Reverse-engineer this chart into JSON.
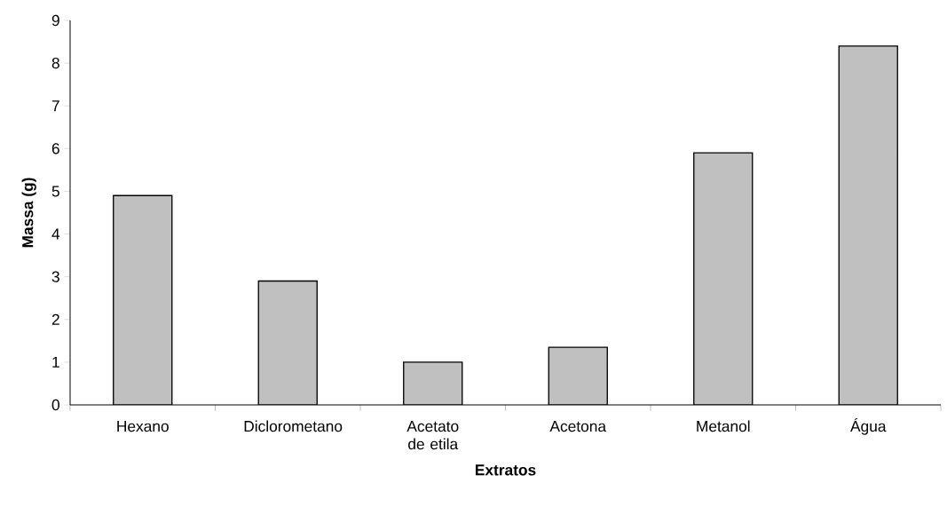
{
  "chart_data": {
    "type": "bar",
    "xlabel": "Extratos",
    "ylabel": "Massa (g)",
    "categories": [
      "Hexano",
      "Diclorometano",
      "Acetato de etila",
      "Acetona",
      "Metanol",
      "Água"
    ],
    "values": [
      4.9,
      2.9,
      1.0,
      1.35,
      5.9,
      8.4
    ],
    "color": "#c0c0c0",
    "ylim": [
      0,
      9
    ],
    "yticks": [
      0,
      1,
      2,
      3,
      4,
      5,
      6,
      7,
      8,
      9
    ]
  }
}
